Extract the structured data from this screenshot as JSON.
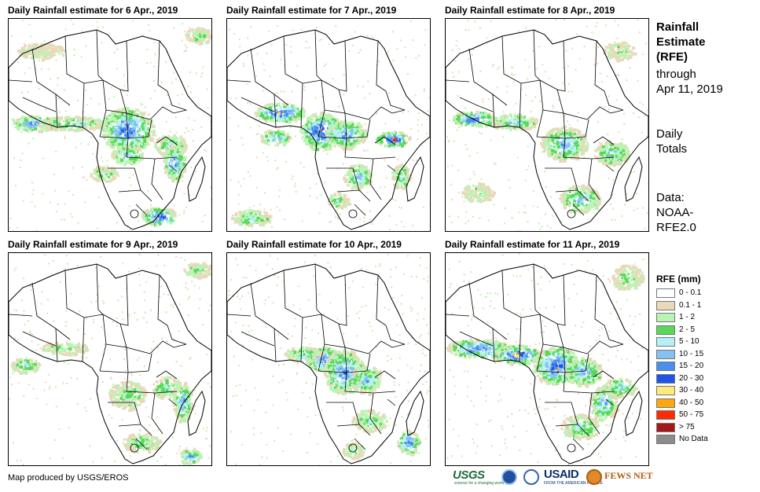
{
  "panels": [
    {
      "title": "Daily Rainfall estimate for 6 Apr., 2019"
    },
    {
      "title": "Daily Rainfall estimate for 7 Apr., 2019"
    },
    {
      "title": "Daily Rainfall estimate for 8 Apr., 2019"
    },
    {
      "title": "Daily Rainfall estimate for 9 Apr., 2019"
    },
    {
      "title": "Daily Rainfall estimate for 10 Apr., 2019"
    },
    {
      "title": "Daily Rainfall estimate for 11 Apr., 2019"
    }
  ],
  "sidebar": {
    "title_line1": "Rainfall",
    "title_line2": "Estimate",
    "title_line3": "(RFE)",
    "through": "through",
    "date": "Apr 11, 2019",
    "daily": "Daily",
    "totals": "Totals",
    "data_label": "Data:",
    "source_line1": "NOAA-",
    "source_line2": "RFE2.0"
  },
  "legend": {
    "title": "RFE (mm)",
    "items": [
      {
        "label": "0 - 0.1",
        "color": "#ffffff"
      },
      {
        "label": "0.1 - 1",
        "color": "#e9d9bb"
      },
      {
        "label": "1 - 2",
        "color": "#b8f5b3"
      },
      {
        "label": "2 - 5",
        "color": "#57d957"
      },
      {
        "label": "5 - 10",
        "color": "#b3f0f7"
      },
      {
        "label": "10 - 15",
        "color": "#86c1f4"
      },
      {
        "label": "15 - 20",
        "color": "#4a8ff0"
      },
      {
        "label": "20 - 30",
        "color": "#1f55e6"
      },
      {
        "label": "30 - 40",
        "color": "#ffe97a"
      },
      {
        "label": "40 - 50",
        "color": "#ffa50d"
      },
      {
        "label": "50 - 75",
        "color": "#ff2a00"
      },
      {
        "label": "> 75",
        "color": "#a31919"
      },
      {
        "label": "No Data",
        "color": "#8c8c8c"
      }
    ]
  },
  "footer": {
    "credit": "Map produced by USGS/EROS",
    "logos": {
      "usgs": "USGS",
      "usgs_tagline": "science for a changing world",
      "usaid": "USAID",
      "usaid_tagline": "FROM THE AMERICAN PEOPLE",
      "fews": "FEWS NET"
    }
  }
}
